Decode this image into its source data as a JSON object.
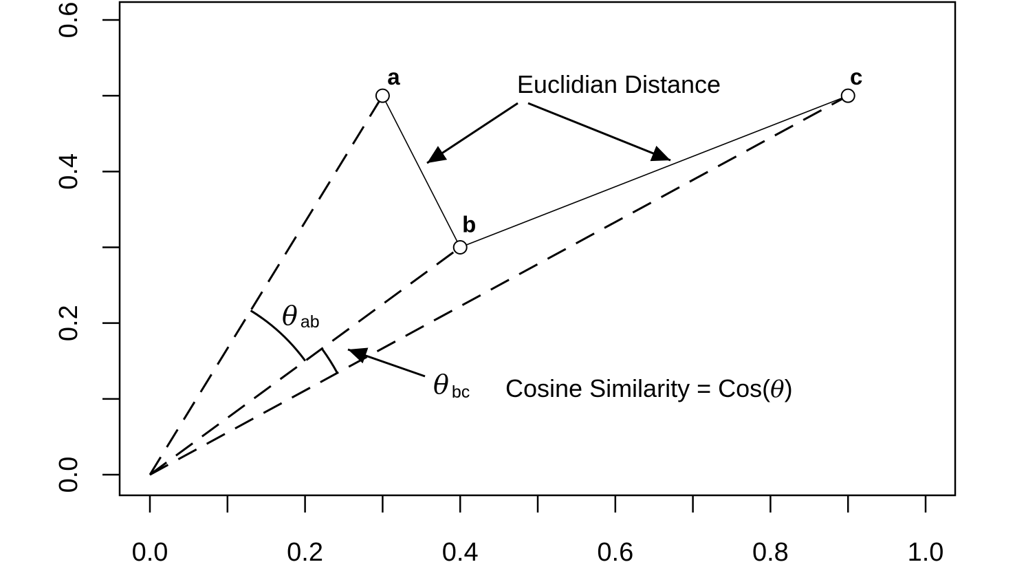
{
  "chart_data": {
    "type": "scatter",
    "xlim": [
      0.0,
      1.0
    ],
    "ylim": [
      0.0,
      0.6
    ],
    "x_ticks": [
      0.0,
      0.1,
      0.2,
      0.3,
      0.4,
      0.5,
      0.6,
      0.7,
      0.8,
      0.9,
      1.0
    ],
    "x_tick_labels": [
      "0.0",
      "0.2",
      "0.4",
      "0.6",
      "0.8",
      "1.0"
    ],
    "x_tick_label_values": [
      0.0,
      0.2,
      0.4,
      0.6,
      0.8,
      1.0
    ],
    "y_ticks": [
      0.0,
      0.1,
      0.2,
      0.3,
      0.4,
      0.5,
      0.6
    ],
    "y_tick_labels": [
      "0.0",
      "0.2",
      "0.4",
      "0.6"
    ],
    "y_tick_label_values": [
      0.0,
      0.2,
      0.4,
      0.6
    ],
    "grid": false,
    "origin": {
      "x": 0.0,
      "y": 0.0
    },
    "points": [
      {
        "label": "a",
        "x": 0.3,
        "y": 0.5
      },
      {
        "label": "b",
        "x": 0.4,
        "y": 0.3
      },
      {
        "label": "c",
        "x": 0.9,
        "y": 0.5
      }
    ],
    "annotations": {
      "euclidean": "Euclidian Distance",
      "cosine": "Cosine Similarity = Cos(",
      "cosine_theta": "θ",
      "cosine_close": ")",
      "theta_ab": {
        "symbol": "θ",
        "sub": "ab"
      },
      "theta_bc": {
        "symbol": "θ",
        "sub": "bc"
      }
    }
  }
}
